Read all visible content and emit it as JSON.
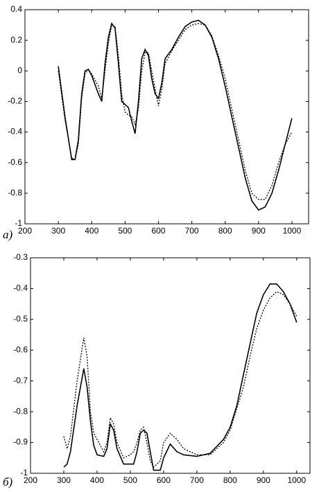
{
  "chart_data": [
    {
      "type": "line",
      "panel_label": "а)",
      "x": [
        300,
        320,
        340,
        350,
        360,
        370,
        380,
        390,
        400,
        420,
        430,
        440,
        450,
        460,
        470,
        480,
        490,
        500,
        510,
        520,
        530,
        540,
        550,
        560,
        570,
        580,
        590,
        600,
        610,
        620,
        640,
        660,
        680,
        700,
        720,
        740,
        760,
        780,
        800,
        820,
        840,
        860,
        880,
        900,
        920,
        940,
        960,
        980,
        1000
      ],
      "series": [
        {
          "color": "#000000",
          "line_style": "solid",
          "values": [
            0.03,
            -0.3,
            -0.58,
            -0.58,
            -0.45,
            -0.15,
            0,
            0.01,
            -0.03,
            -0.15,
            -0.2,
            0.05,
            0.22,
            0.31,
            0.28,
            0.05,
            -0.2,
            -0.22,
            -0.24,
            -0.33,
            -0.41,
            -0.2,
            0.08,
            0.14,
            0.1,
            -0.05,
            -0.15,
            -0.18,
            -0.08,
            0.08,
            0.14,
            0.22,
            0.29,
            0.32,
            0.33,
            0.3,
            0.22,
            0.08,
            -0.1,
            -0.3,
            -0.5,
            -0.7,
            -0.85,
            -0.91,
            -0.89,
            -0.8,
            -0.65,
            -0.48,
            -0.31
          ]
        },
        {
          "color": "#000000",
          "line_style": "dotted",
          "values": [
            0.0,
            -0.32,
            -0.57,
            -0.58,
            -0.48,
            -0.18,
            -0.02,
            0.01,
            -0.02,
            -0.1,
            -0.18,
            0.0,
            0.18,
            0.3,
            0.29,
            0.1,
            -0.15,
            -0.27,
            -0.29,
            -0.3,
            -0.35,
            -0.25,
            0.0,
            0.12,
            0.12,
            0.0,
            -0.12,
            -0.23,
            -0.12,
            0.05,
            0.13,
            0.2,
            0.27,
            0.3,
            0.31,
            0.3,
            0.23,
            0.1,
            -0.05,
            -0.25,
            -0.45,
            -0.65,
            -0.8,
            -0.84,
            -0.84,
            -0.75,
            -0.6,
            -0.48,
            -0.4
          ]
        }
      ],
      "xlim": [
        200,
        1050
      ],
      "xticks": [
        200,
        300,
        400,
        500,
        600,
        700,
        800,
        900,
        1000
      ],
      "ylim": [
        -1,
        0.4
      ],
      "yticks": [
        -1,
        -0.8,
        -0.6,
        -0.4,
        -0.2,
        0,
        0.2,
        0.4
      ],
      "grid": false
    },
    {
      "type": "line",
      "panel_label": "б)",
      "x": [
        300,
        310,
        320,
        340,
        360,
        370,
        380,
        390,
        400,
        420,
        430,
        440,
        450,
        460,
        480,
        500,
        510,
        520,
        530,
        540,
        550,
        560,
        570,
        590,
        600,
        620,
        640,
        660,
        700,
        740,
        780,
        800,
        820,
        840,
        860,
        880,
        900,
        920,
        940,
        960,
        980,
        1000
      ],
      "series": [
        {
          "color": "#000000",
          "line_style": "solid",
          "values": [
            -0.98,
            -0.97,
            -0.93,
            -0.78,
            -0.66,
            -0.72,
            -0.83,
            -0.91,
            -0.94,
            -0.945,
            -0.92,
            -0.84,
            -0.86,
            -0.92,
            -0.97,
            -0.97,
            -0.97,
            -0.93,
            -0.87,
            -0.86,
            -0.87,
            -0.93,
            -0.99,
            -0.99,
            -0.95,
            -0.905,
            -0.93,
            -0.94,
            -0.945,
            -0.935,
            -0.89,
            -0.85,
            -0.78,
            -0.68,
            -0.58,
            -0.48,
            -0.42,
            -0.385,
            -0.385,
            -0.41,
            -0.45,
            -0.51
          ]
        },
        {
          "color": "#000000",
          "line_style": "dotted",
          "values": [
            -0.88,
            -0.92,
            -0.88,
            -0.7,
            -0.56,
            -0.62,
            -0.8,
            -0.87,
            -0.89,
            -0.93,
            -0.9,
            -0.82,
            -0.84,
            -0.9,
            -0.95,
            -0.94,
            -0.93,
            -0.9,
            -0.86,
            -0.85,
            -0.9,
            -0.96,
            -0.98,
            -0.96,
            -0.9,
            -0.87,
            -0.89,
            -0.92,
            -0.94,
            -0.94,
            -0.9,
            -0.86,
            -0.79,
            -0.72,
            -0.62,
            -0.53,
            -0.47,
            -0.43,
            -0.41,
            -0.42,
            -0.45,
            -0.49
          ]
        }
      ],
      "xlim": [
        200,
        1040
      ],
      "xticks": [
        200,
        300,
        400,
        500,
        600,
        700,
        800,
        900,
        1000
      ],
      "ylim": [
        -1,
        -0.3
      ],
      "yticks": [
        -1,
        -0.9,
        -0.8,
        -0.7,
        -0.6,
        -0.5,
        -0.4,
        -0.3
      ],
      "grid": false
    }
  ]
}
